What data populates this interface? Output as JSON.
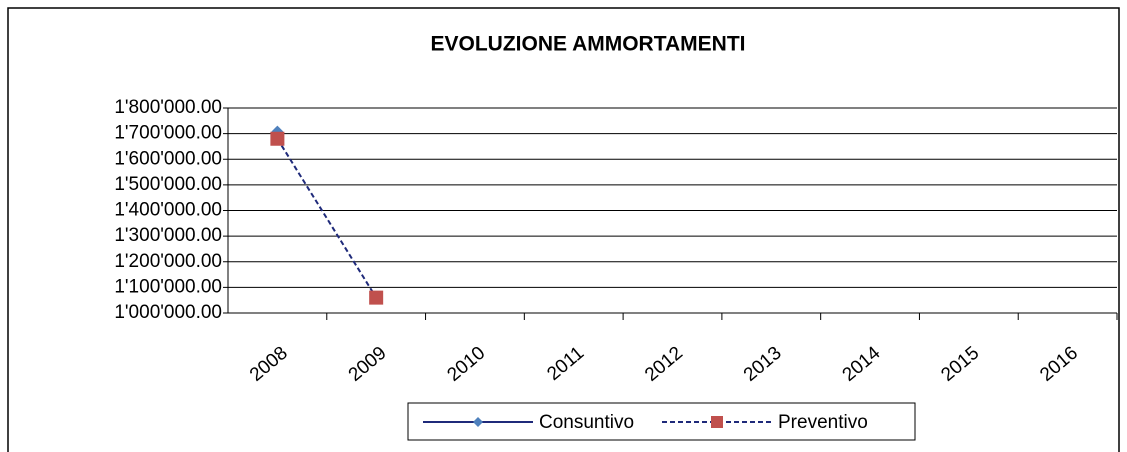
{
  "chart_data": {
    "type": "line",
    "title": "EVOLUZIONE AMMORTAMENTI",
    "categories": [
      "2008",
      "2009",
      "2010",
      "2011",
      "2012",
      "2013",
      "2014",
      "2015",
      "2016"
    ],
    "series": [
      {
        "name": "Consuntivo",
        "color": "#1f2a7a",
        "marker_color": "#4f81bd",
        "marker": "diamond",
        "dashed": false,
        "values": [
          1708000,
          null,
          null,
          null,
          null,
          null,
          null,
          null,
          null
        ]
      },
      {
        "name": "Preventivo",
        "color": "#1f2a7a",
        "marker_color": "#c0504d",
        "marker": "square",
        "dashed": true,
        "values": [
          1680000,
          1060000,
          null,
          null,
          null,
          null,
          null,
          null,
          null
        ]
      }
    ],
    "ylim": [
      1000000,
      1800000
    ],
    "yticks": [
      {
        "value": 1000000,
        "label": "1'000'000.00"
      },
      {
        "value": 1100000,
        "label": "1'100'000.00"
      },
      {
        "value": 1200000,
        "label": "1'200'000.00"
      },
      {
        "value": 1300000,
        "label": "1'300'000.00"
      },
      {
        "value": 1400000,
        "label": "1'400'000.00"
      },
      {
        "value": 1500000,
        "label": "1'500'000.00"
      },
      {
        "value": 1600000,
        "label": "1'600'000.00"
      },
      {
        "value": 1700000,
        "label": "1'700'000.00"
      },
      {
        "value": 1800000,
        "label": "1'800'000.00"
      }
    ],
    "grid": true,
    "legend": "bottom"
  }
}
